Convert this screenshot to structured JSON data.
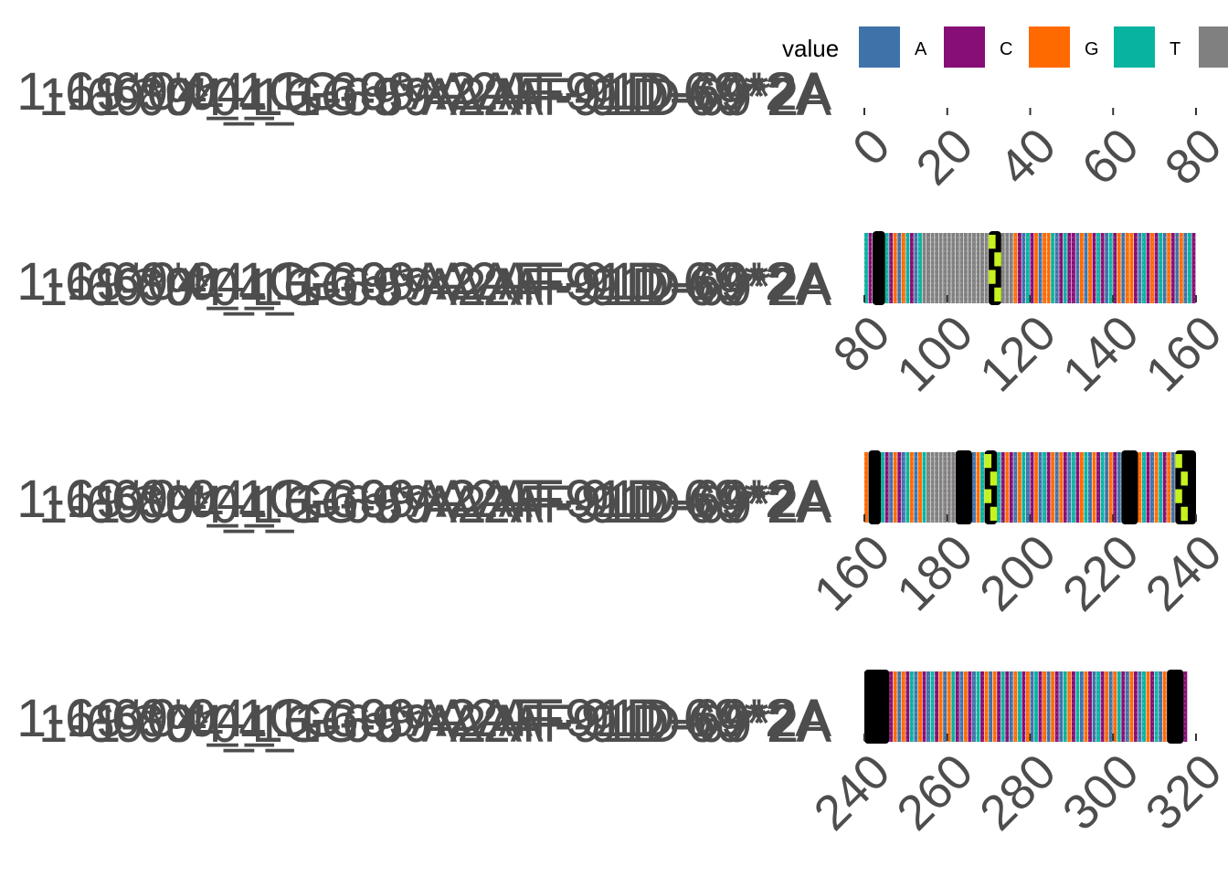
{
  "chart_data": {
    "type": "heatmap",
    "title": "",
    "xlabel": "",
    "ylabel": "",
    "legend": {
      "title": "value",
      "position": "top-right",
      "entries": [
        {
          "label": "A",
          "color": "#3F72A8"
        },
        {
          "label": "C",
          "color": "#870E76"
        },
        {
          "label": "G",
          "color": "#FF6A00"
        },
        {
          "label": "T",
          "color": "#08B39F"
        },
        {
          "label": "",
          "color": "#808080"
        }
      ]
    },
    "highlight_colors": {
      "mismatch": "#000000",
      "variant": "#C6F21E"
    },
    "grid": false,
    "y_label_text": "1-69*04_1G-69*A2AF-91D-69*2A",
    "panels": [
      {
        "xlim": [
          0,
          80
        ],
        "x_ticks": [
          "0",
          "20",
          "40",
          "60",
          "80"
        ],
        "sequence": "",
        "black_ranges": [],
        "lime_ranges": []
      },
      {
        "xlim": [
          80,
          160
        ],
        "x_ticks": [
          "80",
          "100",
          "120",
          "140",
          "160"
        ],
        "sequence": "TCAGATCGAGTCATNNNNNNNNNNNNNNNNNNNNNNGCATCGAGGTACTCCAGAGCTCATCGAGGCATCGCTAGCAGATC",
        "black_ranges": [
          [
            82,
            85
          ],
          [
            110,
            113
          ]
        ],
        "lime_ranges": [
          [
            110,
            113
          ]
        ]
      },
      {
        "xlim": [
          160,
          240
        ],
        "x_ticks": [
          "160",
          "180",
          "200",
          "220",
          "240"
        ],
        "sequence": "GATCTCAGCATGAGTNNNNNNNGATCAGTCGATCGCAGTACGATCGAGCATCGTAGCTAGCATCGAGTCAGTCGAGCAT",
        "black_ranges": [
          [
            161,
            164
          ],
          [
            182,
            186
          ],
          [
            189,
            192
          ],
          [
            222,
            226
          ],
          [
            235,
            240
          ]
        ],
        "lime_ranges": [
          [
            189,
            192
          ],
          [
            235,
            238
          ]
        ]
      },
      {
        "xlim": [
          240,
          320
        ],
        "x_ticks": [
          "240",
          "260",
          "280",
          "300",
          "320"
        ],
        "sequence": "ATGCATCGAGCTAGCATCGAGTCAGCATCGAGCTCAGTCGATCGAGCATGCTAGCATCGAGTCAGCATGCTAGCATGC",
        "black_ranges": [
          [
            240,
            246
          ],
          [
            313,
            317
          ]
        ],
        "lime_ranges": []
      }
    ]
  }
}
